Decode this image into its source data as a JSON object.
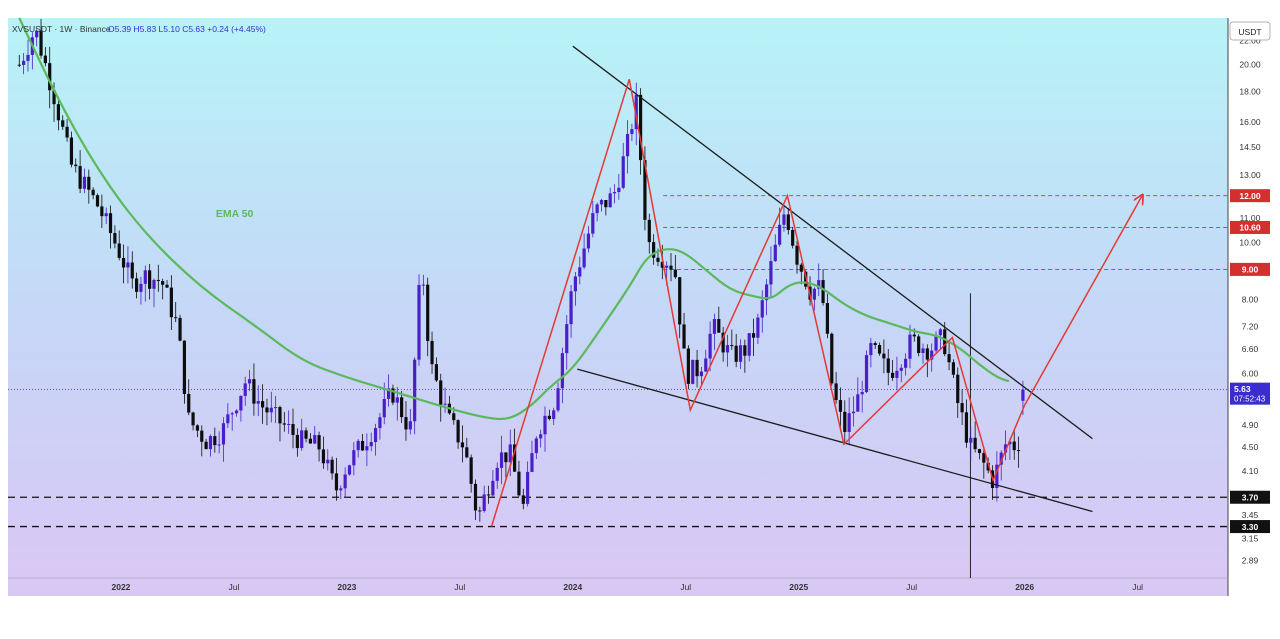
{
  "header": {
    "symbol": "XVSUSDT · 1W · Binance",
    "ohlc": "O5.39  H5.83  L5.10  C5.63  +0.24 (+4.45%)"
  },
  "chart_data": {
    "type": "candlestick",
    "title": "",
    "currency": "USDT",
    "price_scale": "log",
    "ylim": [
      2.7,
      24
    ],
    "y_ticks": [
      22.0,
      20.0,
      18.0,
      16.0,
      14.5,
      13.0,
      11.0,
      10.0,
      9.0,
      8.0,
      7.2,
      6.6,
      6.0,
      5.4,
      4.9,
      4.5,
      4.1,
      3.7,
      3.45,
      3.15,
      2.89
    ],
    "x_ticks": [
      {
        "label": "2022",
        "t": 2022.0,
        "bold": true
      },
      {
        "label": "Jul",
        "t": 2022.5,
        "bold": false
      },
      {
        "label": "2023",
        "t": 2023.0,
        "bold": true
      },
      {
        "label": "Jul",
        "t": 2023.5,
        "bold": false
      },
      {
        "label": "2024",
        "t": 2024.0,
        "bold": true
      },
      {
        "label": "Jul",
        "t": 2024.5,
        "bold": false
      },
      {
        "label": "2025",
        "t": 2025.0,
        "bold": true
      },
      {
        "label": "Jul",
        "t": 2025.5,
        "bold": false
      },
      {
        "label": "2026",
        "t": 2026.0,
        "bold": true
      },
      {
        "label": "Jul",
        "t": 2026.5,
        "bold": false
      }
    ],
    "current_price": {
      "value": 5.63,
      "label": "5.63",
      "countdown": "07:52:43"
    },
    "ema": {
      "label": "EMA 50",
      "period": 50,
      "color": "#5cb85c",
      "points": [
        [
          2021.55,
          24
        ],
        [
          2021.72,
          17.5
        ],
        [
          2021.9,
          13.2
        ],
        [
          2022.1,
          10.4
        ],
        [
          2022.35,
          8.4
        ],
        [
          2022.6,
          7.2
        ],
        [
          2022.8,
          6.3
        ],
        [
          2023.0,
          5.9
        ],
        [
          2023.2,
          5.6
        ],
        [
          2023.4,
          5.3
        ],
        [
          2023.6,
          5.05
        ],
        [
          2023.72,
          5.0
        ],
        [
          2023.82,
          5.3
        ],
        [
          2023.9,
          5.7
        ],
        [
          2024.0,
          6.1
        ],
        [
          2024.12,
          7.1
        ],
        [
          2024.25,
          8.4
        ],
        [
          2024.33,
          9.5
        ],
        [
          2024.42,
          9.8
        ],
        [
          2024.5,
          9.6
        ],
        [
          2024.6,
          8.9
        ],
        [
          2024.7,
          8.3
        ],
        [
          2024.8,
          8.1
        ],
        [
          2024.88,
          8.0
        ],
        [
          2024.95,
          8.45
        ],
        [
          2025.02,
          8.6
        ],
        [
          2025.1,
          8.4
        ],
        [
          2025.2,
          7.85
        ],
        [
          2025.3,
          7.5
        ],
        [
          2025.4,
          7.3
        ],
        [
          2025.52,
          7.05
        ],
        [
          2025.62,
          6.95
        ],
        [
          2025.72,
          6.6
        ],
        [
          2025.8,
          6.2
        ],
        [
          2025.88,
          5.9
        ],
        [
          2025.93,
          5.82
        ]
      ]
    },
    "candles": [],
    "support_levels": [
      {
        "value": 3.7,
        "label": "3.70"
      },
      {
        "value": 3.3,
        "label": "3.30"
      }
    ],
    "resistance_levels": [
      {
        "value": 12.0,
        "label": "12.00"
      },
      {
        "value": 10.6,
        "label": "10.60"
      },
      {
        "value": 9.0,
        "label": "9.00"
      }
    ],
    "trendlines": [
      {
        "name": "upper-trendline",
        "from": [
          2024.0,
          21.5
        ],
        "to": [
          2026.3,
          4.65
        ]
      },
      {
        "name": "lower-trendline",
        "from": [
          2024.02,
          6.1
        ],
        "to": [
          2026.3,
          3.5
        ]
      }
    ],
    "zigzag": [
      [
        2023.64,
        3.3
      ],
      [
        2024.25,
        18.9
      ],
      [
        2024.52,
        5.2
      ],
      [
        2024.95,
        12.0
      ],
      [
        2025.2,
        4.55
      ],
      [
        2025.68,
        6.9
      ],
      [
        2025.86,
        3.95
      ],
      [
        2026.0,
        5.3
      ]
    ],
    "projection": {
      "from": [
        2026.0,
        5.3
      ],
      "to": [
        2026.52,
        12.0
      ]
    },
    "annotations": [
      {
        "text": "EMA 50",
        "t": 2022.42,
        "price": 11.05
      }
    ],
    "marker_line": {
      "t": 2025.76
    }
  }
}
